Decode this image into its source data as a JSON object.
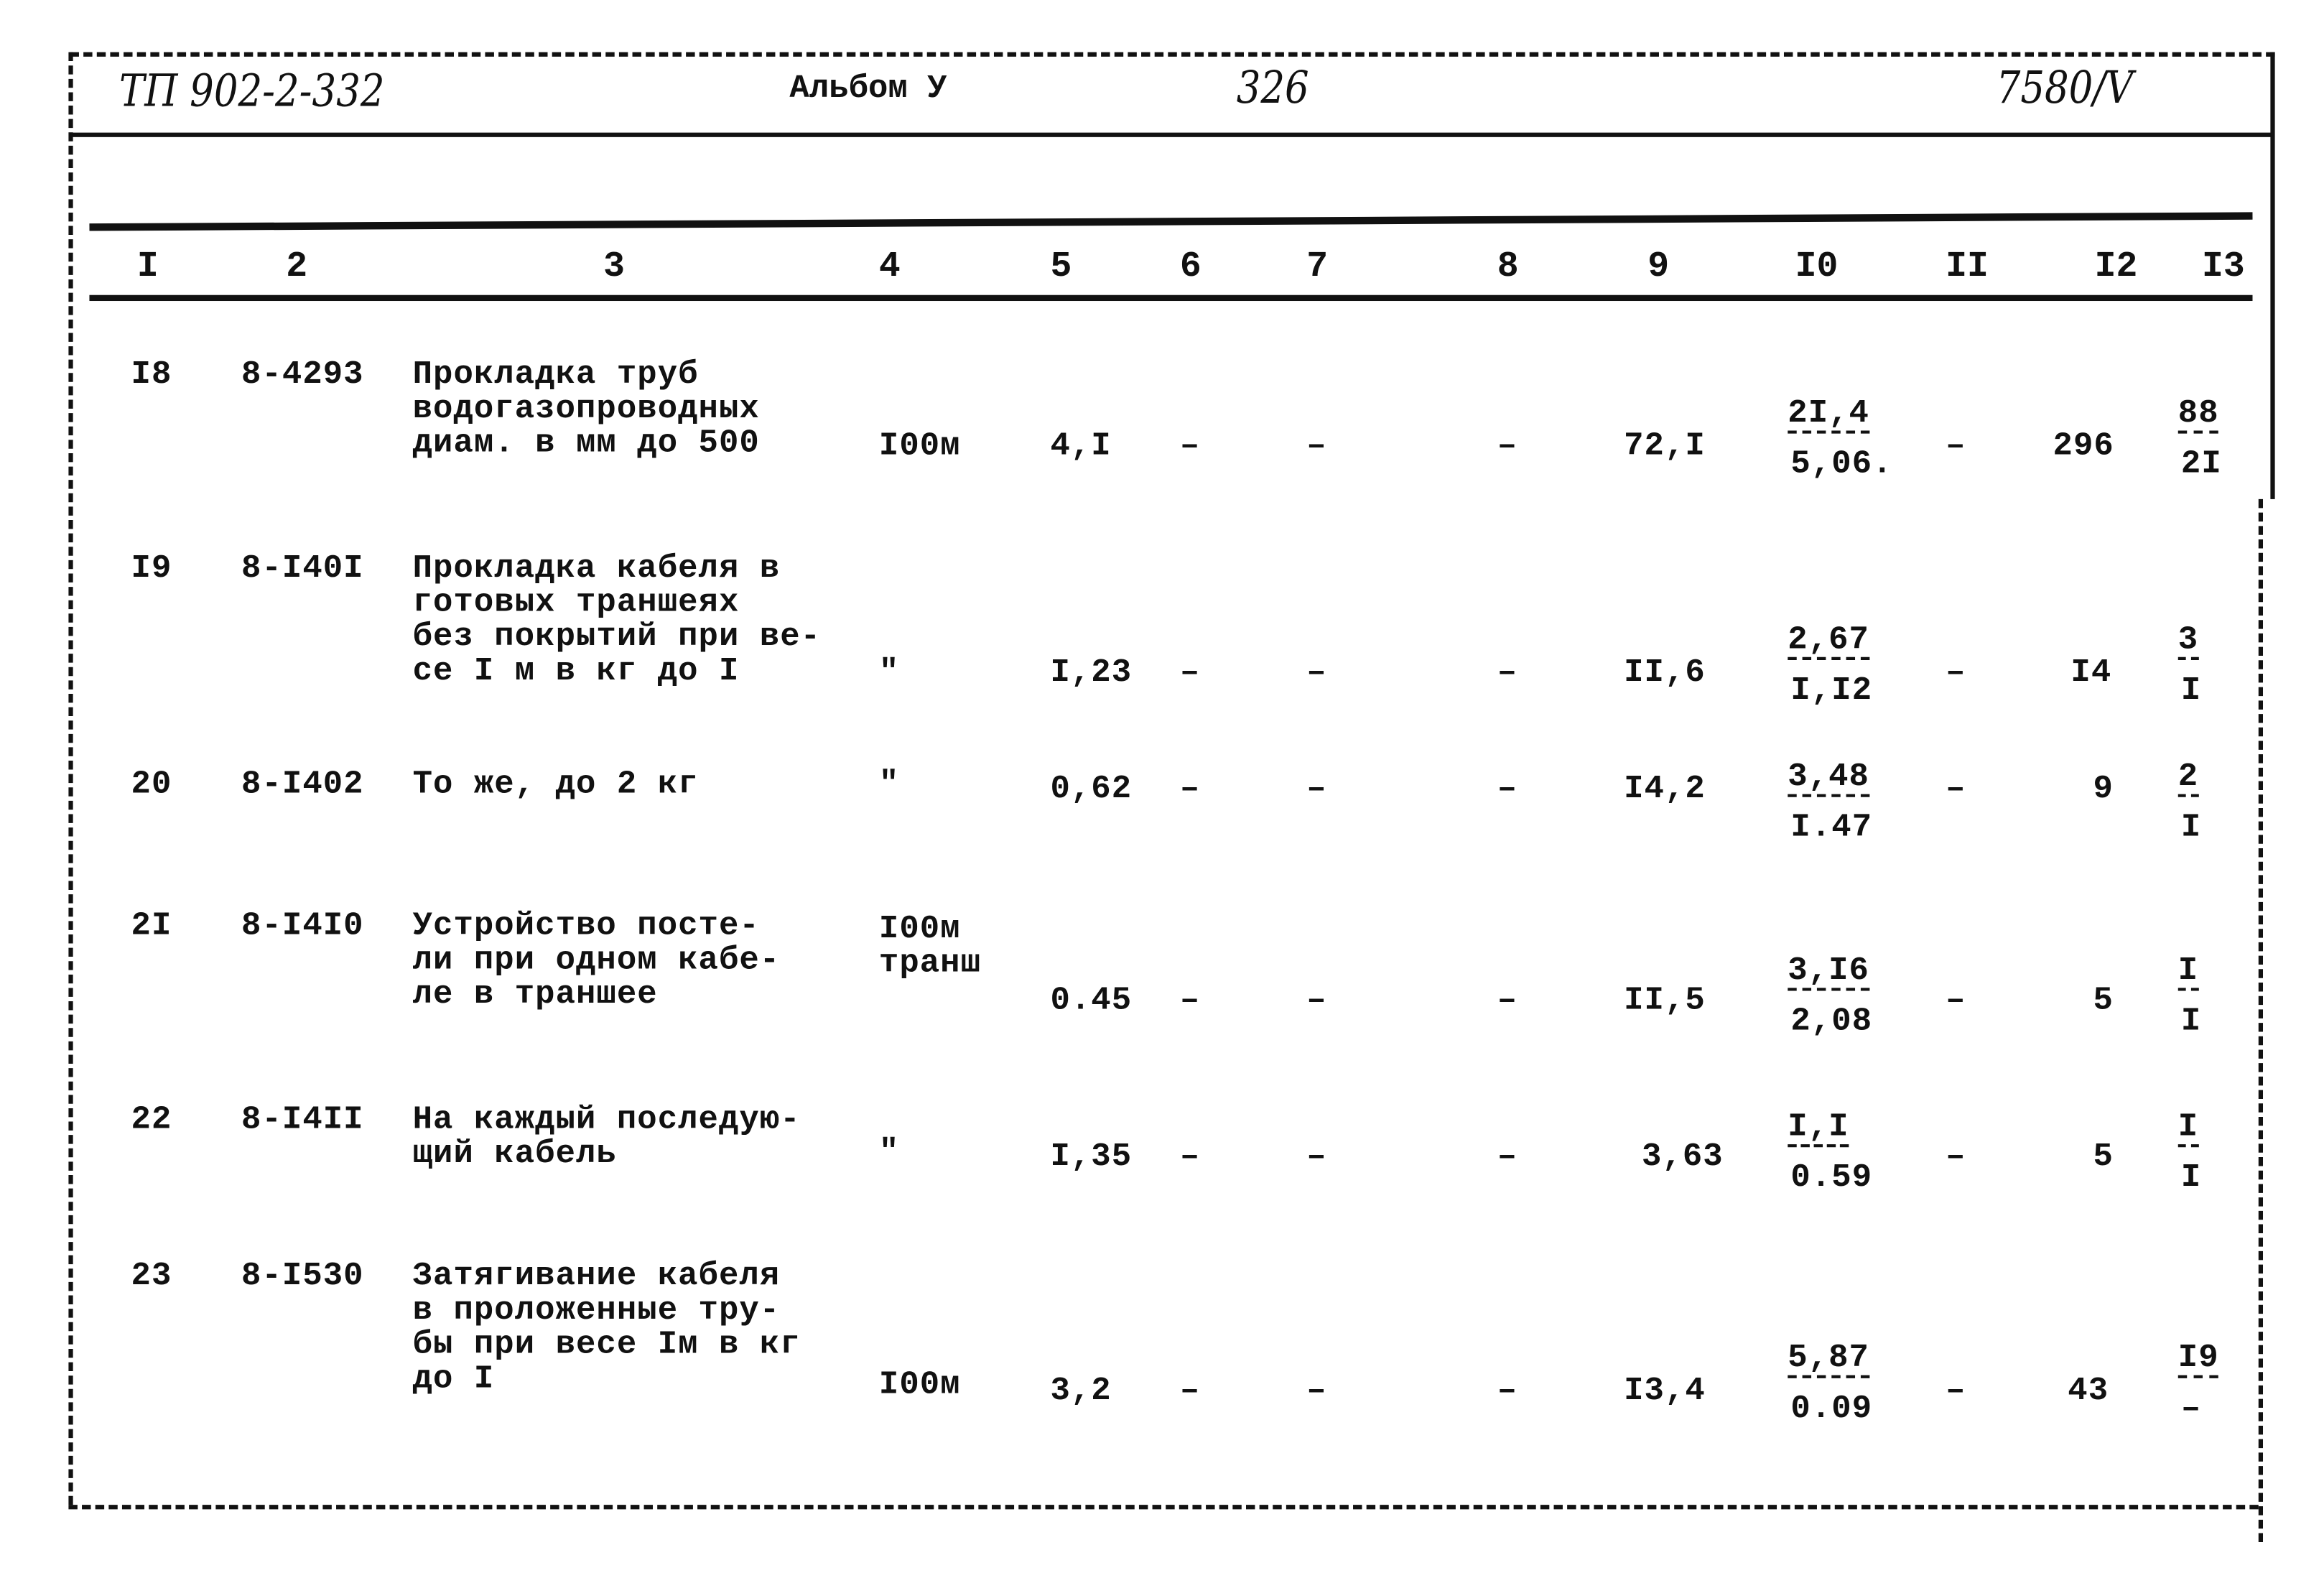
{
  "header": {
    "project": "ТП 902-2-332",
    "album": "Альбом У",
    "page": "326",
    "code": "7580/V"
  },
  "columns": [
    "I",
    "2",
    "3",
    "4",
    "5",
    "6",
    "7",
    "8",
    "9",
    "I0",
    "II",
    "I2",
    "I3"
  ],
  "rows": [
    {
      "no": "I8",
      "code": "8-4293",
      "desc": [
        "Прокладка труб",
        "водогазопроводных",
        "диам. в мм до 500"
      ],
      "unit": [
        "I00м"
      ],
      "c5": "4,I",
      "c6": "–",
      "c7": "–",
      "c8": "–",
      "c9": "72,I",
      "c10_top": "2I,4",
      "c10_bottom": "5,06.",
      "c11": "–",
      "c12": "296",
      "c13_top": "88",
      "c13_bottom": "2I"
    },
    {
      "no": "I9",
      "code": "8-I40I",
      "desc": [
        "Прокладка кабеля в",
        "готовых траншеях",
        "без покрытий при ве-",
        "се I м в кг до I"
      ],
      "unit": [
        "\""
      ],
      "c5": "I,23",
      "c6": "–",
      "c7": "–",
      "c8": "–",
      "c9": "II,6",
      "c10_top": "2,67",
      "c10_bottom": "I,I2",
      "c11": "–",
      "c12": "I4",
      "c13_top": "3",
      "c13_bottom": "I"
    },
    {
      "no": "20",
      "code": "8-I402",
      "desc": [
        "То же, до 2 кг"
      ],
      "unit": [
        "\""
      ],
      "c5": "0,62",
      "c6": "–",
      "c7": "–",
      "c8": "–",
      "c9": "I4,2",
      "c10_top": "3,48",
      "c10_bottom": "I.47",
      "c11": "–",
      "c12": "9",
      "c13_top": "2",
      "c13_bottom": "I"
    },
    {
      "no": "2I",
      "code": "8-I4I0",
      "desc": [
        "Устройство посте-",
        "ли при одном кабе-",
        "ле в траншее"
      ],
      "unit": [
        "I00м",
        "транш"
      ],
      "c5": "0.45",
      "c6": "–",
      "c7": "–",
      "c8": "–",
      "c9": "II,5",
      "c10_top": "3,I6",
      "c10_bottom": "2,08",
      "c11": "–",
      "c12": "5",
      "c13_top": "I",
      "c13_bottom": "I"
    },
    {
      "no": "22",
      "code": "8-I4II",
      "desc": [
        "На каждый последую-",
        "щий кабель"
      ],
      "unit": [
        "\""
      ],
      "c5": "I,35",
      "c6": "–",
      "c7": "–",
      "c8": "–",
      "c9": "3,63",
      "c10_top": "I,I",
      "c10_bottom": "0.59",
      "c11": "–",
      "c12": "5",
      "c13_top": "I",
      "c13_bottom": "I"
    },
    {
      "no": "23",
      "code": "8-I530",
      "desc": [
        "Затягивание кабеля",
        "в проложенные тру-",
        "бы при весе Iм в кг",
        "до I"
      ],
      "unit": [
        "I00м"
      ],
      "c5": "3,2",
      "c6": "–",
      "c7": "–",
      "c8": "–",
      "c9": "I3,4",
      "c10_top": "5,87",
      "c10_bottom": "0.09",
      "c11": "–",
      "c12": "43",
      "c13_top": "I9",
      "c13_bottom": "–"
    }
  ]
}
